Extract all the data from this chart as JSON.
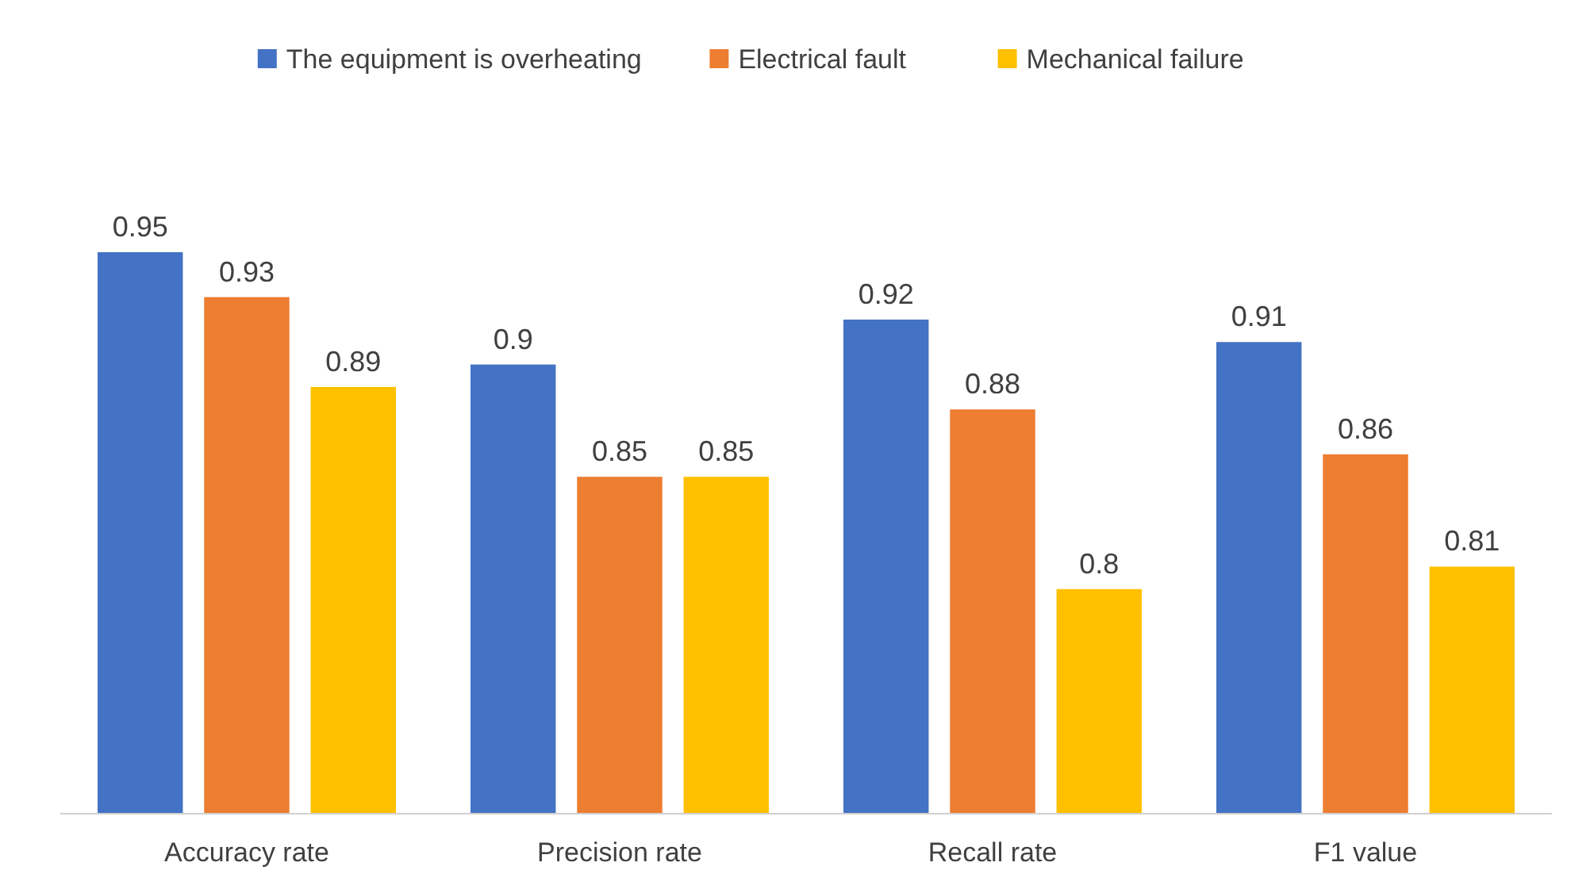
{
  "chart_data": {
    "type": "bar",
    "categories": [
      "Accuracy rate",
      "Precision rate",
      "Recall rate",
      "F1 value"
    ],
    "series": [
      {
        "name": "The equipment is overheating",
        "color": "#4472c4",
        "values": [
          0.95,
          0.9,
          0.92,
          0.91
        ]
      },
      {
        "name": "Electrical fault",
        "color": "#ed7d31",
        "values": [
          0.93,
          0.85,
          0.88,
          0.86
        ]
      },
      {
        "name": "Mechanical failure",
        "color": "#ffc000",
        "values": [
          0.89,
          0.85,
          0.8,
          0.81
        ]
      }
    ],
    "ylim": [
      0.7,
      0.95
    ],
    "tick_labels": "x",
    "data_labels": true,
    "legend": "top"
  }
}
